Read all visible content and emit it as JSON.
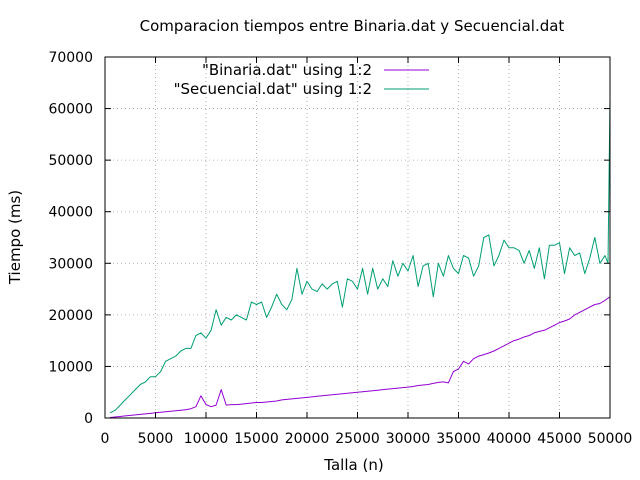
{
  "chart_data": {
    "type": "line",
    "title": "Comparacion tiempos entre Binaria.dat y Secuencial.dat",
    "xlabel": "Talla (n)",
    "ylabel": "Tiempo (ms)",
    "xlim": [
      0,
      50000
    ],
    "ylim": [
      0,
      70000
    ],
    "xticks": [
      0,
      5000,
      10000,
      15000,
      20000,
      25000,
      30000,
      35000,
      40000,
      45000,
      50000
    ],
    "yticks": [
      0,
      10000,
      20000,
      30000,
      40000,
      50000,
      60000,
      70000
    ],
    "grid": true,
    "legend_position": "top-center",
    "series": [
      {
        "name": "\"Binaria.dat\" using 1:2",
        "color": "#9400d3",
        "x": [
          500,
          1000,
          1500,
          2000,
          2500,
          3000,
          3500,
          4000,
          4500,
          5000,
          5500,
          6000,
          6500,
          7000,
          7500,
          8000,
          8500,
          9000,
          9500,
          10000,
          10500,
          11000,
          11500,
          12000,
          12500,
          13000,
          13500,
          14000,
          14500,
          15000,
          15500,
          16000,
          16500,
          17000,
          17500,
          18000,
          18500,
          19000,
          19500,
          20000,
          20500,
          21000,
          21500,
          22000,
          22500,
          23000,
          23500,
          24000,
          24500,
          25000,
          25500,
          26000,
          26500,
          27000,
          27500,
          28000,
          28500,
          29000,
          29500,
          30000,
          30500,
          31000,
          31500,
          32000,
          32500,
          33000,
          33500,
          34000,
          34500,
          35000,
          35500,
          36000,
          36500,
          37000,
          37500,
          38000,
          38500,
          39000,
          39500,
          40000,
          40500,
          41000,
          41500,
          42000,
          42500,
          43000,
          43500,
          44000,
          44500,
          45000,
          45500,
          46000,
          46500,
          47000,
          47500,
          48000,
          48500,
          49000,
          49500,
          50000
        ],
        "y": [
          100,
          200,
          300,
          400,
          500,
          600,
          700,
          800,
          900,
          1000,
          1100,
          1200,
          1300,
          1400,
          1500,
          1600,
          1800,
          2200,
          4300,
          2600,
          2200,
          2500,
          5500,
          2500,
          2600,
          2600,
          2700,
          2800,
          2900,
          3000,
          3000,
          3100,
          3200,
          3300,
          3500,
          3600,
          3700,
          3800,
          3900,
          4000,
          4100,
          4200,
          4300,
          4400,
          4500,
          4600,
          4700,
          4800,
          4900,
          5000,
          5100,
          5200,
          5300,
          5400,
          5500,
          5600,
          5700,
          5800,
          5900,
          6000,
          6100,
          6300,
          6400,
          6500,
          6700,
          6900,
          7000,
          6800,
          9000,
          9500,
          11000,
          10500,
          11500,
          12000,
          12300,
          12600,
          13000,
          13500,
          14000,
          14500,
          15000,
          15300,
          15700,
          16000,
          16500,
          16800,
          17000,
          17500,
          18000,
          18500,
          18800,
          19200,
          20000,
          20500,
          21000,
          21500,
          22000,
          22200,
          22800,
          23500
        ]
      },
      {
        "name": "\"Secuencial.dat\" using 1:2",
        "color": "#009e73",
        "x": [
          500,
          1000,
          1500,
          2000,
          2500,
          3000,
          3500,
          4000,
          4500,
          5000,
          5500,
          6000,
          6500,
          7000,
          7500,
          8000,
          8500,
          9000,
          9500,
          10000,
          10500,
          11000,
          11500,
          12000,
          12500,
          13000,
          13500,
          14000,
          14500,
          15000,
          15500,
          16000,
          16500,
          17000,
          17500,
          18000,
          18500,
          19000,
          19500,
          20000,
          20500,
          21000,
          21500,
          22000,
          22500,
          23000,
          23500,
          24000,
          24500,
          25000,
          25500,
          26000,
          26500,
          27000,
          27500,
          28000,
          28500,
          29000,
          29500,
          30000,
          30500,
          31000,
          31500,
          32000,
          32500,
          33000,
          33500,
          34000,
          34500,
          35000,
          35500,
          36000,
          36500,
          37000,
          37500,
          38000,
          38500,
          39000,
          39500,
          40000,
          40500,
          41000,
          41500,
          42000,
          42500,
          43000,
          43500,
          44000,
          44500,
          45000,
          45500,
          46000,
          46500,
          47000,
          47500,
          48000,
          48500,
          49000,
          49500,
          49800,
          50000
        ],
        "y": [
          1000,
          1500,
          2500,
          3500,
          4500,
          5500,
          6500,
          7000,
          8000,
          8000,
          9000,
          11000,
          11500,
          12000,
          13000,
          13500,
          13500,
          16000,
          16500,
          15500,
          17000,
          21000,
          18000,
          19500,
          19000,
          20000,
          19500,
          19000,
          22500,
          22000,
          22500,
          19500,
          21500,
          24000,
          22000,
          21000,
          23000,
          29000,
          24000,
          26500,
          25000,
          24500,
          26000,
          25000,
          26000,
          26500,
          21500,
          27000,
          26500,
          25000,
          29000,
          24000,
          29000,
          25000,
          27000,
          25500,
          30500,
          27500,
          30000,
          28500,
          31500,
          25500,
          29500,
          30000,
          23500,
          30000,
          27500,
          31500,
          29000,
          28000,
          31500,
          31000,
          27500,
          29500,
          35000,
          35500,
          29500,
          31500,
          34500,
          33000,
          33000,
          32500,
          30000,
          32500,
          29000,
          33000,
          27000,
          33500,
          33500,
          34000,
          28000,
          33000,
          31500,
          32000,
          28000,
          31000,
          35000,
          30000,
          31500,
          30000,
          62000
        ]
      }
    ]
  }
}
